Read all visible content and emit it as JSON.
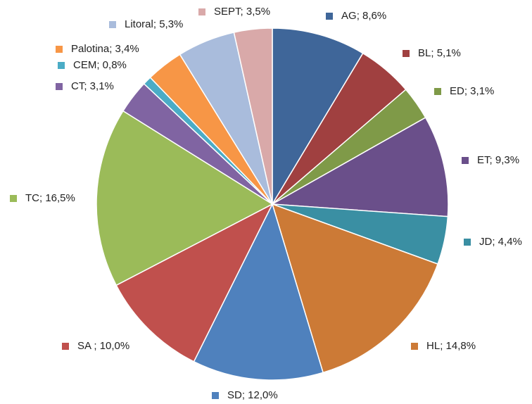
{
  "chart_data": {
    "type": "pie",
    "categories": [
      "AG",
      "BL",
      "ED",
      "ET",
      "JD",
      "HL",
      "SD",
      "SA",
      "TC",
      "CT",
      "CEM",
      "Palotina",
      "Litoral",
      "SEPT"
    ],
    "values": [
      8.6,
      5.1,
      3.1,
      9.3,
      4.4,
      14.8,
      12.0,
      10.0,
      16.5,
      3.1,
      0.8,
      3.4,
      5.3,
      3.5
    ],
    "value_labels": [
      "; 8,6%",
      "; 5,1%",
      "; 3,1%",
      "; 9,3%",
      "; 4,4%",
      "; 14,8%",
      "; 12,0%",
      " ; 10,0%",
      "; 16,5%",
      "; 3,1%",
      "; 0,8%",
      "; 3,4%",
      "; 5,3%",
      "; 3,5%"
    ],
    "colors": [
      "#3f6699",
      "#a04040",
      "#7f9a48",
      "#6a4f8a",
      "#3a8fa3",
      "#cc7a36",
      "#4f81bd",
      "#c0504d",
      "#9bbb59",
      "#8064a2",
      "#4bacc6",
      "#f79646",
      "#a9bcdc",
      "#d9a9a9"
    ]
  }
}
